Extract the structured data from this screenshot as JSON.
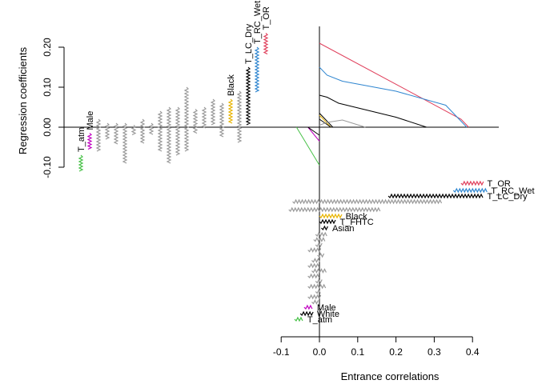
{
  "chart_data": {
    "type": "line",
    "title": "",
    "xlabel": "Entrance correlations",
    "ylabel": "Regression coefficients",
    "x_ticks": [
      "-0.1",
      "0.0",
      "0.1",
      "0.2",
      "0.3",
      "0.4"
    ],
    "y_ticks": [
      "-0.10",
      "0.00",
      "0.10",
      "0.20"
    ],
    "xlim": [
      -0.1,
      0.46
    ],
    "ylim": [
      -0.12,
      0.25
    ],
    "colors": {
      "T_OR": "#e0405c",
      "T_RC_Wet": "#2f86d0",
      "T_LC_Dry": "#000000",
      "Black": "#e8b400",
      "T_FHTC": "#000000",
      "Asian": "#000000",
      "Male": "#c000c0",
      "White": "#000000",
      "T_atm": "#44c044",
      "other": "#999999"
    },
    "series": [
      {
        "name": "T_OR",
        "x": [
          0.0,
          0.37,
          0.39
        ],
        "y": [
          0.21,
          0.02,
          0.0
        ]
      },
      {
        "name": "T_RC_Wet",
        "x": [
          0.0,
          0.02,
          0.06,
          0.2,
          0.33,
          0.385
        ],
        "y": [
          0.15,
          0.13,
          0.115,
          0.09,
          0.055,
          0.0
        ]
      },
      {
        "name": "T_LC_Dry",
        "x": [
          0.0,
          0.02,
          0.05,
          0.2,
          0.28
        ],
        "y": [
          0.08,
          0.075,
          0.06,
          0.025,
          0.0
        ]
      },
      {
        "name": "T_FHTC",
        "x": [
          0.0,
          0.035
        ],
        "y": [
          0.035,
          0.0
        ]
      },
      {
        "name": "Black",
        "x": [
          0.0,
          0.03
        ],
        "y": [
          0.03,
          0.0
        ]
      },
      {
        "name": "Asian",
        "x": [
          0.0,
          0.03
        ],
        "y": [
          0.02,
          0.0
        ]
      },
      {
        "name": "",
        "x": [
          0.0,
          0.02,
          0.06,
          0.12
        ],
        "y": [
          0.005,
          0.012,
          0.018,
          0.0
        ]
      },
      {
        "name": "Male",
        "x": [
          -0.03,
          0.0
        ],
        "y": [
          0.0,
          -0.035
        ]
      },
      {
        "name": "White",
        "x": [
          -0.03,
          0.0
        ],
        "y": [
          0.0,
          -0.02
        ]
      },
      {
        "name": "T_atm",
        "x": [
          -0.06,
          0.0
        ],
        "y": [
          0.0,
          -0.095
        ]
      }
    ],
    "coefficient_marks": [
      {
        "name": "T_atm",
        "bottom": -0.11,
        "top": -0.07
      },
      {
        "name": "Male",
        "bottom": -0.055,
        "top": -0.015
      },
      {
        "name": "",
        "bottom": -0.06,
        "top": 0.02
      },
      {
        "name": "",
        "bottom": -0.03,
        "top": 0.01
      },
      {
        "name": "",
        "bottom": -0.045,
        "top": 0.01
      },
      {
        "name": "",
        "bottom": -0.09,
        "top": 0.01
      },
      {
        "name": "",
        "bottom": -0.02,
        "top": 0.005
      },
      {
        "name": "",
        "bottom": -0.04,
        "top": 0.02
      },
      {
        "name": "",
        "bottom": -0.02,
        "top": 0.01
      },
      {
        "name": "",
        "bottom": -0.06,
        "top": 0.04
      },
      {
        "name": "",
        "bottom": -0.09,
        "top": 0.05
      },
      {
        "name": "",
        "bottom": -0.07,
        "top": 0.05
      },
      {
        "name": "",
        "bottom": -0.06,
        "top": 0.1
      },
      {
        "name": "",
        "bottom": -0.015,
        "top": 0.045
      },
      {
        "name": "",
        "bottom": -0.005,
        "top": 0.05
      },
      {
        "name": "",
        "bottom": 0.005,
        "top": 0.07
      },
      {
        "name": "",
        "bottom": -0.025,
        "top": 0.06
      },
      {
        "name": "Black",
        "bottom": 0.01,
        "top": 0.07
      },
      {
        "name": "",
        "bottom": -0.04,
        "top": 0.09
      },
      {
        "name": "T_LC_Dry",
        "bottom": 0.005,
        "top": 0.15
      },
      {
        "name": "T_RC_Wet",
        "bottom": 0.085,
        "top": 0.2
      },
      {
        "name": "T_OR",
        "bottom": 0.18,
        "top": 0.235
      }
    ],
    "correlation_marks": [
      {
        "name": "T_OR",
        "left": 0.37,
        "right": 0.43
      },
      {
        "name": "T_RC_Wet",
        "left": 0.35,
        "right": 0.44
      },
      {
        "name": "T_LC_Dry",
        "left": 0.18,
        "right": 0.43
      },
      {
        "name": "",
        "left": -0.07,
        "right": 0.32
      },
      {
        "name": "",
        "left": -0.08,
        "right": 0.16
      },
      {
        "name": "Black",
        "left": 0.0,
        "right": 0.06
      },
      {
        "name": "T_FHTC",
        "left": 0.0,
        "right": 0.045
      },
      {
        "name": "Asian",
        "left": 0.005,
        "right": 0.025
      },
      {
        "name": "",
        "left": -0.01,
        "right": 0.02
      },
      {
        "name": "",
        "left": -0.015,
        "right": 0.015
      },
      {
        "name": "",
        "left": -0.01,
        "right": 0.01
      },
      {
        "name": "",
        "left": -0.03,
        "right": 0.005
      },
      {
        "name": "",
        "left": -0.005,
        "right": 0.015
      },
      {
        "name": "",
        "left": -0.02,
        "right": 0.005
      },
      {
        "name": "",
        "left": -0.03,
        "right": 0.0
      },
      {
        "name": "",
        "left": -0.02,
        "right": 0.02
      },
      {
        "name": "",
        "left": -0.03,
        "right": 0.0
      },
      {
        "name": "",
        "left": -0.01,
        "right": 0.01
      },
      {
        "name": "",
        "left": -0.03,
        "right": 0.02
      },
      {
        "name": "",
        "left": -0.01,
        "right": 0.005
      },
      {
        "name": "",
        "left": -0.03,
        "right": 0.005
      },
      {
        "name": "",
        "left": -0.02,
        "right": 0.0
      },
      {
        "name": "Male",
        "left": -0.04,
        "right": -0.015
      },
      {
        "name": "White",
        "left": -0.05,
        "right": -0.015
      },
      {
        "name": "T_atm",
        "left": -0.065,
        "right": -0.04
      }
    ]
  }
}
